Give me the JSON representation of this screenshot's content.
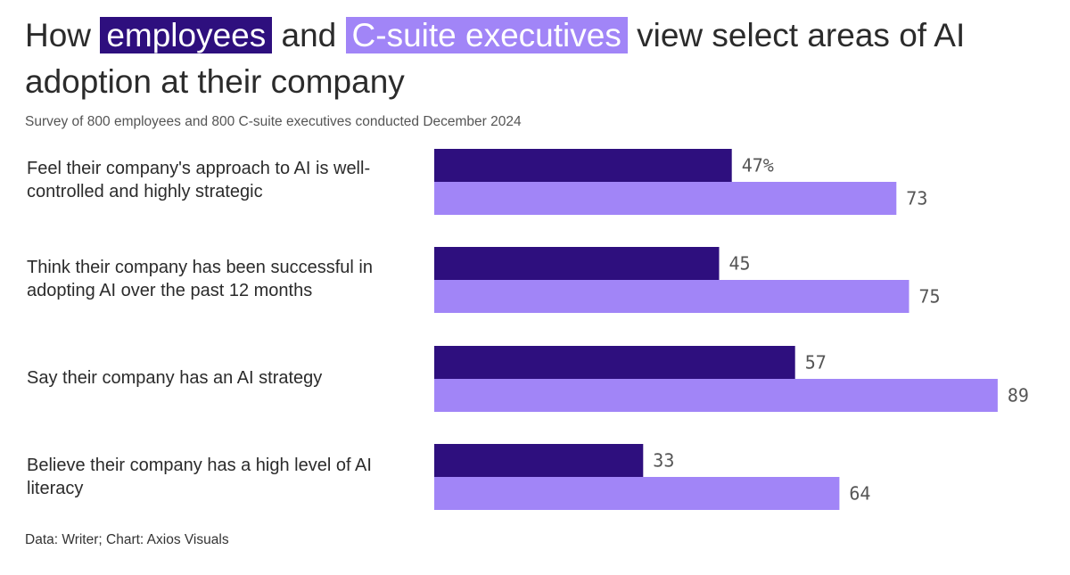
{
  "title": {
    "prefix": "How",
    "employees": "employees",
    "and": "and",
    "csuite": "C-suite executives",
    "suffix": "view select areas of AI adoption at their company"
  },
  "subtitle": "Survey of 800 employees and 800 C-suite executives conducted December 2024",
  "source": "Data: Writer; Chart: Axios Visuals",
  "colors": {
    "employees": "#2e0f7e",
    "csuite": "#a185f7"
  },
  "chart_data": {
    "type": "bar",
    "orientation": "horizontal",
    "title": "How employees and C-suite executives view select areas of AI adoption at their company",
    "categories": [
      "Feel their company's approach to AI is well-controlled and highly strategic",
      "Think their company has been successful in adopting AI over the past 12 months",
      "Say their company has an AI strategy",
      "Believe their company has a high level of AI literacy"
    ],
    "series": [
      {
        "name": "employees",
        "values": [
          47,
          45,
          57,
          33
        ]
      },
      {
        "name": "C-suite executives",
        "values": [
          73,
          75,
          89,
          64
        ]
      }
    ],
    "value_labels": {
      "employees": [
        "47%",
        "45",
        "57",
        "33"
      ],
      "C-suite executives": [
        "73",
        "75",
        "89",
        "64"
      ]
    },
    "xlim": [
      0,
      100
    ],
    "unit": "%",
    "grid": false,
    "legend": "inline in title"
  }
}
